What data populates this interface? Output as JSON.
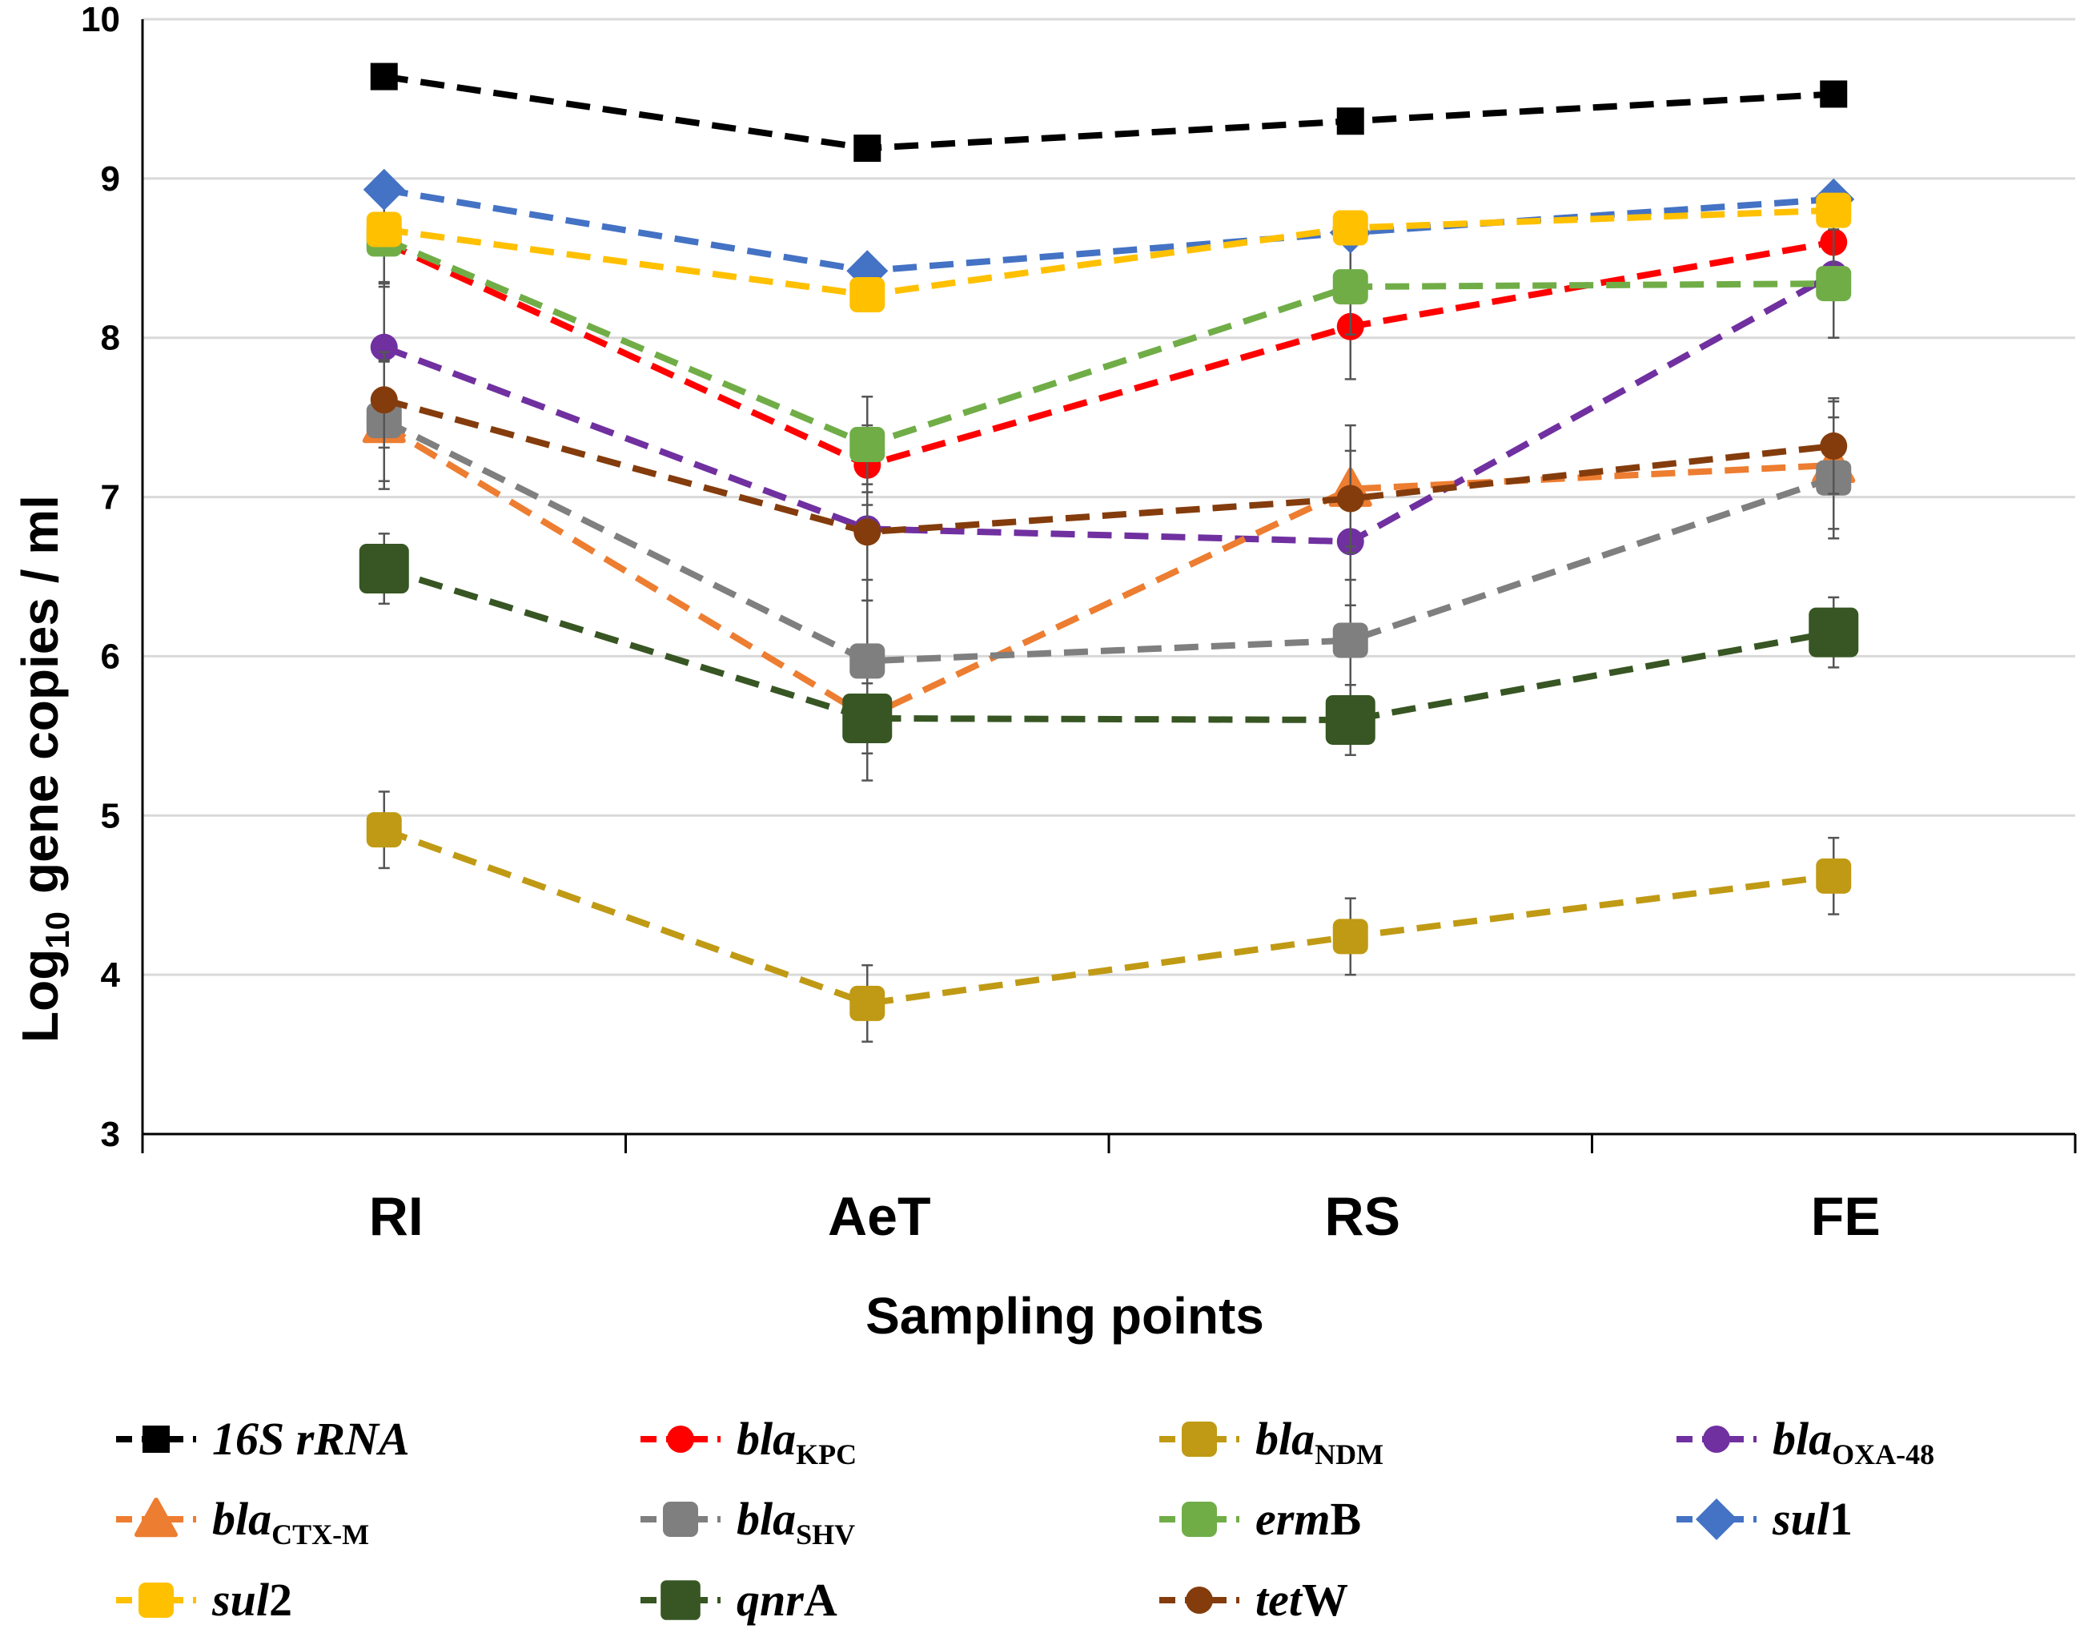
{
  "chart_data": {
    "type": "line",
    "xlabel": "Sampling points",
    "ylabel": {
      "prefix": "Log",
      "subscript": "10",
      "suffix": "gene copies / ml"
    },
    "categories": [
      "RI",
      "AeT",
      "RS",
      "FE"
    ],
    "ylim": [
      3,
      10
    ],
    "yticks": [
      3,
      4,
      5,
      6,
      7,
      8,
      9,
      10
    ],
    "grid": true,
    "legend_position": "bottom",
    "series": [
      {
        "name": "16S rRNA",
        "label_parts": [
          {
            "t": "16S rRNA",
            "it": true
          }
        ],
        "color": "#000000",
        "marker": "square",
        "values": [
          9.64,
          9.19,
          9.36,
          9.53
        ],
        "errors": [
          0,
          0,
          0,
          0
        ]
      },
      {
        "name": "blaKPC",
        "label_parts": [
          {
            "t": "bla",
            "it": true
          },
          {
            "t": "KPC",
            "sub": true
          }
        ],
        "color": "#ff0000",
        "marker": "circle",
        "values": [
          8.6,
          7.2,
          8.07,
          8.6
        ],
        "errors": [
          0.25,
          0.25,
          0.33,
          0.25
        ]
      },
      {
        "name": "blaNDM",
        "label_parts": [
          {
            "t": "bla",
            "it": true
          },
          {
            "t": "NDM",
            "sub": true
          }
        ],
        "color": "#c09a14",
        "marker": "roundsquare",
        "values": [
          4.91,
          3.82,
          4.24,
          4.62
        ],
        "errors": [
          0.24,
          0.24,
          0.24,
          0.24
        ]
      },
      {
        "name": "blaOXA-48",
        "label_parts": [
          {
            "t": "bla",
            "it": true
          },
          {
            "t": "OXA-48",
            "sub": true
          }
        ],
        "color": "#7030a0",
        "marker": "circle",
        "values": [
          7.94,
          6.8,
          6.72,
          8.4
        ],
        "errors": [
          0.4,
          0.45,
          0.4,
          0.4
        ]
      },
      {
        "name": "blaCTX-M",
        "label_parts": [
          {
            "t": "bla",
            "it": true
          },
          {
            "t": "CTX-M",
            "sub": true
          }
        ],
        "color": "#ed7d31",
        "marker": "triangle",
        "values": [
          7.45,
          5.62,
          7.05,
          7.2
        ],
        "errors": [
          0.4,
          0.4,
          0.4,
          0.4
        ]
      },
      {
        "name": "blaSHV",
        "label_parts": [
          {
            "t": "bla",
            "it": true
          },
          {
            "t": "SHV",
            "sub": true
          }
        ],
        "color": "#7f7f7f",
        "marker": "roundsquare",
        "values": [
          7.48,
          5.97,
          6.1,
          7.12
        ],
        "errors": [
          0.38,
          0.38,
          0.38,
          0.38
        ]
      },
      {
        "name": "ermB",
        "label_parts": [
          {
            "t": "erm",
            "it": true
          },
          {
            "t": "B"
          }
        ],
        "color": "#70ad47",
        "marker": "roundsquare",
        "values": [
          8.62,
          7.33,
          8.32,
          8.34
        ],
        "errors": [
          0.3,
          0.3,
          0.3,
          0.34
        ]
      },
      {
        "name": "sul1",
        "label_parts": [
          {
            "t": "sul",
            "it": true
          },
          {
            "t": "1"
          }
        ],
        "color": "#4472c4",
        "marker": "diamond",
        "values": [
          8.93,
          8.42,
          8.66,
          8.87
        ],
        "errors": [
          0,
          0,
          0,
          0
        ]
      },
      {
        "name": "sul2",
        "label_parts": [
          {
            "t": "sul",
            "it": true
          },
          {
            "t": "2"
          }
        ],
        "color": "#ffc000",
        "marker": "roundsquare",
        "values": [
          8.68,
          8.27,
          8.69,
          8.8
        ],
        "errors": [
          0,
          0,
          0,
          0
        ]
      },
      {
        "name": "qnrA",
        "label_parts": [
          {
            "t": "qnr",
            "it": true
          },
          {
            "t": "A"
          }
        ],
        "color": "#375623",
        "marker": "bigsquare",
        "values": [
          6.55,
          5.61,
          5.6,
          6.15
        ],
        "errors": [
          0.22,
          0.22,
          0.22,
          0.22
        ]
      },
      {
        "name": "tetW",
        "label_parts": [
          {
            "t": "tet",
            "it": true
          },
          {
            "t": "W"
          }
        ],
        "color": "#843c0c",
        "marker": "circle",
        "values": [
          7.61,
          6.78,
          6.99,
          7.32
        ],
        "errors": [
          0.3,
          0.3,
          0.3,
          0.3
        ]
      }
    ]
  }
}
